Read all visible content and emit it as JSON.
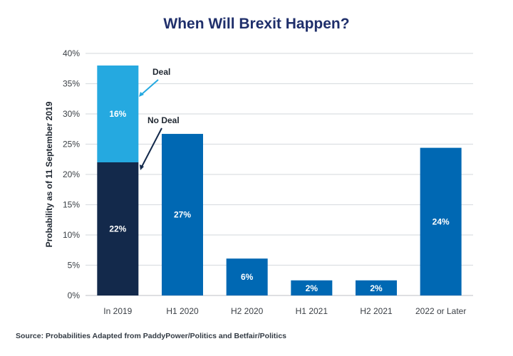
{
  "chart_data": {
    "type": "bar",
    "stacked_first_category": true,
    "title": "When Will Brexit Happen?",
    "xlabel": "",
    "ylabel": "Probability as of 11 September 2019",
    "ylim": [
      0,
      40
    ],
    "yticks": [
      0,
      5,
      10,
      15,
      20,
      25,
      30,
      35,
      40
    ],
    "ytick_labels": [
      "0%",
      "5%",
      "10%",
      "15%",
      "20%",
      "25%",
      "30%",
      "35%",
      "40%"
    ],
    "grid": true,
    "categories": [
      "In 2019",
      "H1 2020",
      "H2 2020",
      "H1 2021",
      "H2 2021",
      "2022 or Later"
    ],
    "series": [
      {
        "name": "No Deal",
        "color": "#13294b",
        "values": [
          22,
          null,
          null,
          null,
          null,
          null
        ],
        "labels": [
          "22%",
          null,
          null,
          null,
          null,
          null
        ]
      },
      {
        "name": "Deal",
        "color": "#25a9e0",
        "values": [
          16,
          null,
          null,
          null,
          null,
          null
        ],
        "labels": [
          "16%",
          null,
          null,
          null,
          null,
          null
        ]
      },
      {
        "name": "Probability",
        "color": "#0068b3",
        "values": [
          null,
          26.7,
          6.1,
          2.5,
          2.5,
          24.4
        ],
        "labels": [
          null,
          "27%",
          "6%",
          "2%",
          "2%",
          "24%"
        ]
      }
    ],
    "annotations": [
      {
        "text": "Deal",
        "target": "In 2019 Deal segment"
      },
      {
        "text": "No Deal",
        "target": "In 2019 No Deal segment"
      }
    ],
    "source": "Source: Probabilities Adapted from PaddyPower/Politics and Betfair/Politics"
  }
}
